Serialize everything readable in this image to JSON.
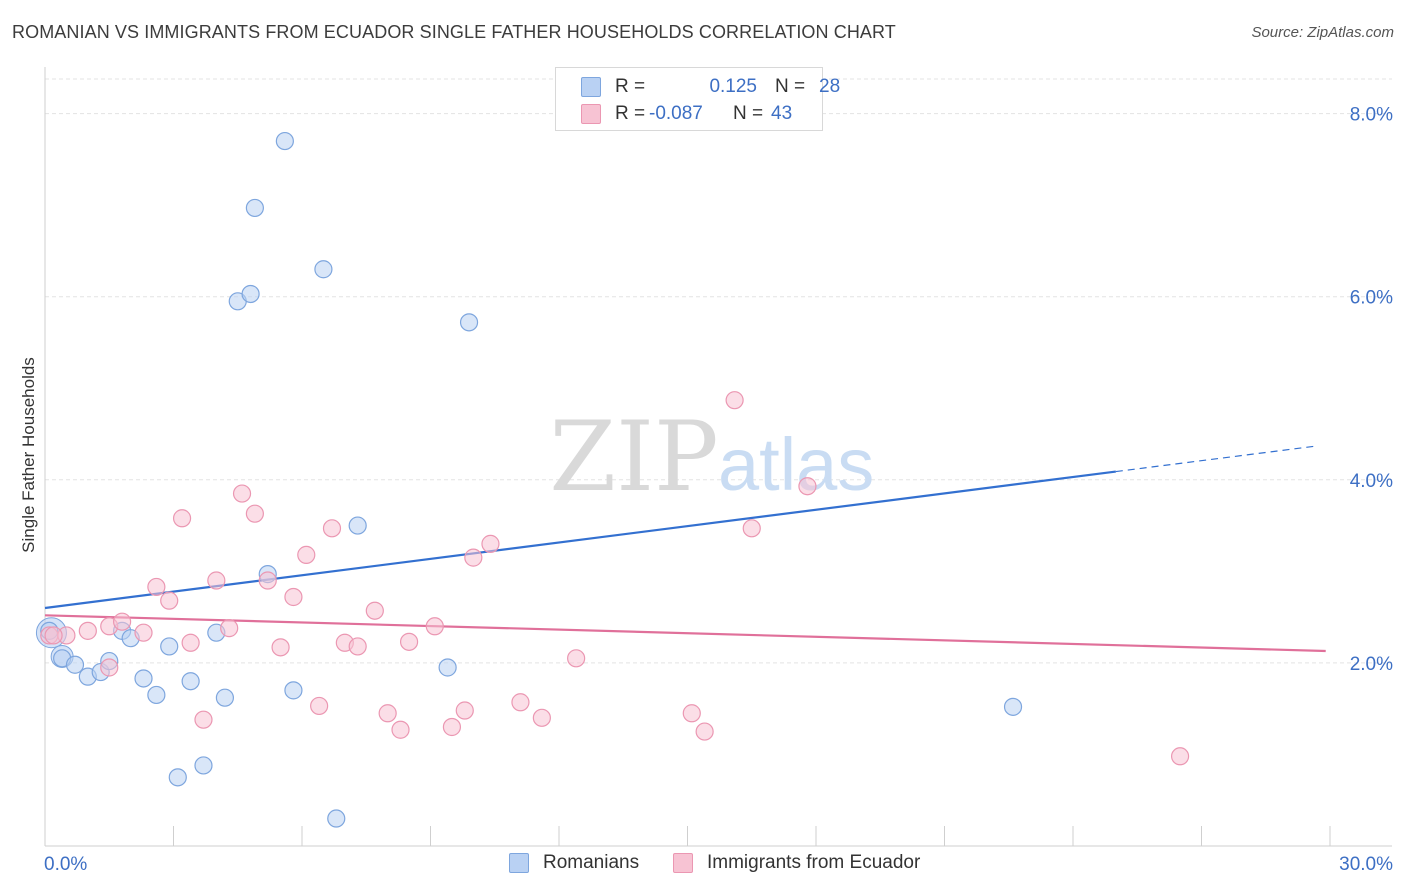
{
  "header": {
    "title": "ROMANIAN VS IMMIGRANTS FROM ECUADOR SINGLE FATHER HOUSEHOLDS CORRELATION CHART",
    "source": "Source: ZipAtlas.com"
  },
  "legend": {
    "rows": [
      {
        "r_label": "R =",
        "r_value": "0.125",
        "n_label": "N =",
        "n_value": "28"
      },
      {
        "r_label": "R =",
        "r_value": "-0.087",
        "n_label": "N =",
        "n_value": "43"
      }
    ]
  },
  "bottom_legend": {
    "series_a": "Romanians",
    "series_b": "Immigrants from Ecuador"
  },
  "watermark": {
    "zip": "ZIP",
    "atlas": "atlas"
  },
  "colors": {
    "blue_fill": "#b9d1f3",
    "blue_stroke": "#7ea6de",
    "blue_line": "#3370d0",
    "pink_fill": "#f7c3d3",
    "pink_stroke": "#eb97b2",
    "pink_line": "#e0709a",
    "grid": "#e3e3e3",
    "axis_text": "#3d6fc4"
  },
  "chart_data": {
    "type": "scatter",
    "title": "ROMANIAN VS IMMIGRANTS FROM ECUADOR SINGLE FATHER HOUSEHOLDS CORRELATION CHART",
    "xlabel": "",
    "ylabel": "Single Father Households",
    "xlim": [
      0,
      30
    ],
    "ylim": [
      0,
      8.4
    ],
    "x_tick_labels": [
      "0.0%",
      "30.0%"
    ],
    "y_ticks": [
      2,
      4,
      6,
      8
    ],
    "y_tick_labels": [
      "2.0%",
      "4.0%",
      "6.0%",
      "8.0%"
    ],
    "grid": true,
    "series": [
      {
        "name": "Romanians",
        "r": 0.125,
        "n": 28,
        "trend": {
          "x0": 0,
          "y0": 2.6,
          "x1": 25,
          "y1": 4.09,
          "dashed_to_x": 29.7,
          "dashed_to_y": 4.37
        },
        "points": [
          [
            0.1,
            2.35
          ],
          [
            0.4,
            2.05
          ],
          [
            0.7,
            1.98
          ],
          [
            1.0,
            1.85
          ],
          [
            1.3,
            1.9
          ],
          [
            1.5,
            2.02
          ],
          [
            1.8,
            2.35
          ],
          [
            2.0,
            2.27
          ],
          [
            2.3,
            1.83
          ],
          [
            2.6,
            1.65
          ],
          [
            2.9,
            2.18
          ],
          [
            3.1,
            0.75
          ],
          [
            3.4,
            1.8
          ],
          [
            3.7,
            0.88
          ],
          [
            4.0,
            2.33
          ],
          [
            4.2,
            1.62
          ],
          [
            4.5,
            5.95
          ],
          [
            4.8,
            6.03
          ],
          [
            4.9,
            6.97
          ],
          [
            5.2,
            2.97
          ],
          [
            5.6,
            7.7
          ],
          [
            5.8,
            1.7
          ],
          [
            6.5,
            6.3
          ],
          [
            6.8,
            0.3
          ],
          [
            7.3,
            3.5
          ],
          [
            9.4,
            1.95
          ],
          [
            9.9,
            5.72
          ],
          [
            22.6,
            1.52
          ]
        ]
      },
      {
        "name": "Immigrants from Ecuador",
        "r": -0.087,
        "n": 43,
        "trend": {
          "x0": 0,
          "y0": 2.52,
          "x1": 29.9,
          "y1": 2.13
        },
        "points": [
          [
            0.1,
            2.3
          ],
          [
            0.5,
            2.3
          ],
          [
            1.0,
            2.35
          ],
          [
            1.5,
            2.4
          ],
          [
            1.5,
            1.95
          ],
          [
            1.8,
            2.45
          ],
          [
            2.3,
            2.33
          ],
          [
            2.6,
            2.83
          ],
          [
            2.9,
            2.68
          ],
          [
            3.2,
            3.58
          ],
          [
            3.4,
            2.22
          ],
          [
            3.7,
            1.38
          ],
          [
            4.0,
            2.9
          ],
          [
            4.3,
            2.38
          ],
          [
            4.6,
            3.85
          ],
          [
            4.9,
            3.63
          ],
          [
            5.2,
            2.9
          ],
          [
            5.5,
            2.17
          ],
          [
            5.8,
            2.72
          ],
          [
            6.1,
            3.18
          ],
          [
            6.4,
            1.53
          ],
          [
            6.7,
            3.47
          ],
          [
            7.0,
            2.22
          ],
          [
            7.3,
            2.18
          ],
          [
            7.7,
            2.57
          ],
          [
            8.0,
            1.45
          ],
          [
            8.3,
            1.27
          ],
          [
            8.5,
            2.23
          ],
          [
            9.1,
            2.4
          ],
          [
            9.5,
            1.3
          ],
          [
            9.8,
            1.48
          ],
          [
            10.0,
            3.15
          ],
          [
            10.4,
            3.3
          ],
          [
            11.1,
            1.57
          ],
          [
            11.6,
            1.4
          ],
          [
            12.4,
            2.05
          ],
          [
            15.1,
            1.45
          ],
          [
            15.4,
            1.25
          ],
          [
            16.1,
            4.87
          ],
          [
            16.5,
            3.47
          ],
          [
            17.8,
            3.93
          ],
          [
            26.5,
            0.98
          ],
          [
            0.2,
            2.3
          ]
        ]
      }
    ]
  }
}
